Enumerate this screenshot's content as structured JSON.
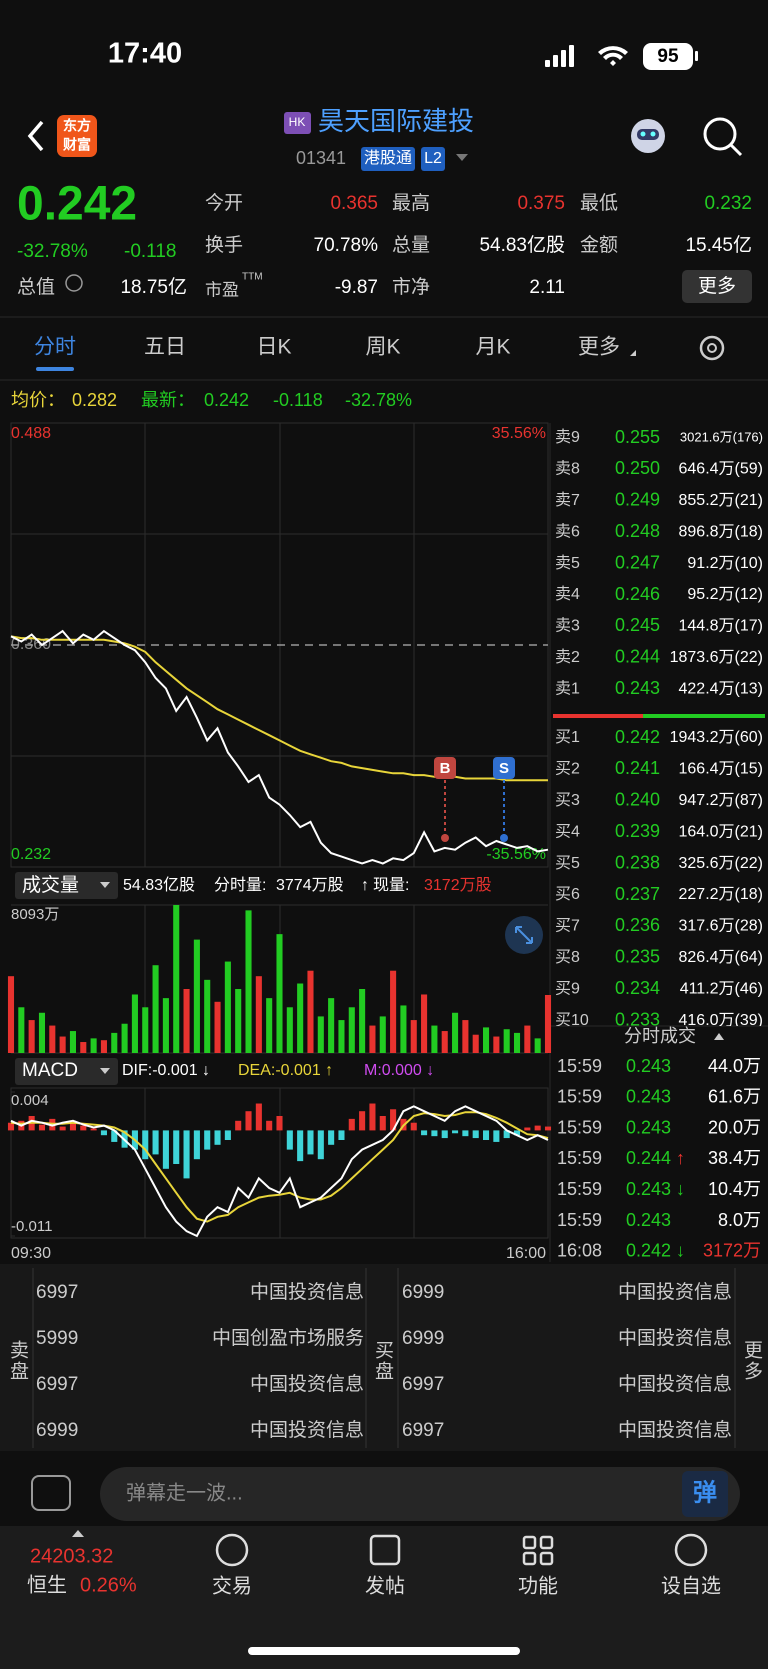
{
  "status_bar": {
    "time": "17:40",
    "battery": "95"
  },
  "header": {
    "logo": [
      "东方",
      "财富"
    ],
    "market_badge": "HK",
    "title": "昊天国际建投",
    "code": "01341",
    "badges": [
      "港股通",
      "L2"
    ]
  },
  "quote": {
    "price": "0.242",
    "change_pct": "-32.78%",
    "change": "-0.118",
    "market_cap_label": "总值",
    "market_cap": "18.75亿",
    "stats": [
      {
        "label": "今开",
        "value": "0.365",
        "color": "#e8332f"
      },
      {
        "label": "最高",
        "value": "0.375",
        "color": "#e8332f"
      },
      {
        "label": "最低",
        "value": "0.232",
        "color": "#22cc22"
      },
      {
        "label": "换手",
        "value": "70.78%",
        "color": "#ffffff"
      },
      {
        "label": "总量",
        "value": "54.83亿股",
        "color": "#ffffff"
      },
      {
        "label": "金额",
        "value": "15.45亿",
        "color": "#ffffff"
      },
      {
        "label": "市盈",
        "sup": "TTM",
        "value": "-9.87",
        "color": "#ffffff"
      },
      {
        "label": "市净",
        "value": "2.11",
        "color": "#ffffff"
      }
    ],
    "more_button": "更多"
  },
  "tabs": [
    "分时",
    "五日",
    "日K",
    "周K",
    "月K",
    "更多"
  ],
  "info_line": {
    "avg_label": "均价：",
    "avg": "0.282",
    "last_label": "最新：",
    "last": "0.242",
    "change": "-0.118",
    "change_pct": "-32.78%"
  },
  "price_chart": {
    "type": "line",
    "ylim": [
      0.232,
      0.488
    ],
    "yticks": [
      0.232,
      {
        "value": 0.36,
        "label": "0.360"
      },
      0.488
    ],
    "y2lim": [
      -35.56,
      35.56
    ],
    "y2ticks": [
      {
        "value": -35.56,
        "label": "-35.56%"
      },
      {
        "value": 35.56,
        "label": "35.56%"
      }
    ],
    "price": {
      "color": "#ffffff",
      "values": [
        0.365,
        0.362,
        0.366,
        0.36,
        0.364,
        0.368,
        0.361,
        0.366,
        0.363,
        0.368,
        0.364,
        0.36,
        0.357,
        0.35,
        0.341,
        0.335,
        0.322,
        0.33,
        0.318,
        0.305,
        0.312,
        0.298,
        0.29,
        0.281,
        0.285,
        0.272,
        0.268,
        0.262,
        0.255,
        0.258,
        0.246,
        0.24,
        0.238,
        0.236,
        0.234,
        0.236,
        0.234,
        0.237,
        0.236,
        0.24,
        0.252,
        0.241,
        0.243,
        0.242,
        0.246,
        0.249,
        0.244,
        0.247,
        0.245,
        0.243,
        0.244,
        0.241,
        0.242
      ]
    },
    "avg": {
      "color": "#e8d53a",
      "values": [
        0.365,
        0.364,
        0.364,
        0.363,
        0.363,
        0.363,
        0.363,
        0.363,
        0.363,
        0.363,
        0.362,
        0.361,
        0.359,
        0.356,
        0.35,
        0.345,
        0.34,
        0.335,
        0.331,
        0.327,
        0.323,
        0.32,
        0.317,
        0.314,
        0.311,
        0.308,
        0.305,
        0.302,
        0.299,
        0.297,
        0.295,
        0.293,
        0.292,
        0.29,
        0.289,
        0.288,
        0.287,
        0.286,
        0.286,
        0.285,
        0.285,
        0.284,
        0.284,
        0.284,
        0.283,
        0.283,
        0.283,
        0.283,
        0.282,
        0.282,
        0.282,
        0.282,
        0.282
      ]
    },
    "trade_markers": [
      "B",
      "S"
    ]
  },
  "volume_chart": {
    "type": "bar",
    "header": {
      "selector": "成交量",
      "total": "54.83亿股",
      "period_label": "分时量:",
      "period": "3774万股",
      "arrow": "↑",
      "current_label": "现量:",
      "current": "3172万股"
    },
    "ylim": [
      0,
      8093
    ],
    "yticks": [
      {
        "value": 8093,
        "label": "8093万"
      }
    ],
    "values": [
      4200,
      2500,
      1800,
      2200,
      1500,
      900,
      1200,
      600,
      800,
      700,
      1100,
      1600,
      3200,
      2500,
      4800,
      3000,
      8093,
      3500,
      6200,
      4000,
      2800,
      5000,
      3500,
      7800,
      4200,
      3000,
      6500,
      2500,
      3800,
      4500,
      2000,
      3000,
      1800,
      2500,
      3500,
      1500,
      2000,
      4500,
      2600,
      1800,
      3200,
      1500,
      1200,
      2200,
      1800,
      1000,
      1400,
      900,
      1300,
      1100,
      1500,
      800,
      3172
    ]
  },
  "macd_chart": {
    "type": "macd",
    "header": {
      "selector": "MACD",
      "dif": "DIF:-0.001 ↓",
      "dea": "DEA:-0.001 ↑",
      "m": "M:0.000 ↓"
    },
    "ylim": [
      -0.011,
      0.004
    ],
    "yticks": [
      -0.011,
      0.004
    ],
    "dif": {
      "color": "#ffffff",
      "values": [
        0.001,
        0.0005,
        0.001,
        0.0008,
        0.0005,
        0.0008,
        0.001,
        0.0006,
        0.0003,
        0.0005,
        0.0,
        -0.001,
        -0.002,
        -0.004,
        -0.006,
        -0.008,
        -0.0095,
        -0.0105,
        -0.011,
        -0.009,
        -0.008,
        -0.0085,
        -0.006,
        -0.007,
        -0.005,
        -0.006,
        -0.0065,
        -0.005,
        -0.008,
        -0.0075,
        -0.007,
        -0.006,
        -0.005,
        -0.003,
        -0.002,
        -0.0015,
        -0.001,
        0.0,
        0.002,
        0.0025,
        0.002,
        0.0015,
        0.001,
        0.002,
        0.0025,
        0.002,
        0.0015,
        0.001,
        0.0,
        -0.0005,
        -0.001,
        -0.0005,
        -0.001
      ]
    },
    "dea": {
      "color": "#e8d53a",
      "values": [
        0.0008,
        0.0007,
        0.0008,
        0.0008,
        0.0007,
        0.0007,
        0.0008,
        0.0007,
        0.0006,
        0.0005,
        0.0003,
        -0.0002,
        -0.001,
        -0.002,
        -0.0035,
        -0.005,
        -0.0065,
        -0.008,
        -0.0092,
        -0.0095,
        -0.009,
        -0.0088,
        -0.008,
        -0.0075,
        -0.007,
        -0.0068,
        -0.0067,
        -0.0065,
        -0.007,
        -0.0072,
        -0.0072,
        -0.0068,
        -0.006,
        -0.005,
        -0.004,
        -0.003,
        -0.002,
        -0.001,
        0.0005,
        0.0015,
        0.0018,
        0.0017,
        0.0015,
        0.0016,
        0.0019,
        0.0019,
        0.0017,
        0.0013,
        0.0008,
        0.0002,
        -0.0004,
        -0.0005,
        -0.0008
      ]
    },
    "hist": {
      "up_color": "#e8332f",
      "down_color": "#3fd4d8",
      "values": [
        0.0008,
        0.001,
        0.0015,
        0.0006,
        0.0012,
        0.0004,
        0.001,
        0.0005,
        0.0002,
        -0.0005,
        -0.0012,
        -0.0018,
        -0.002,
        -0.003,
        -0.0025,
        -0.004,
        -0.0035,
        -0.005,
        -0.003,
        -0.002,
        -0.0015,
        -0.001,
        0.001,
        0.002,
        0.0028,
        0.001,
        0.0015,
        -0.002,
        -0.0032,
        -0.0025,
        -0.003,
        -0.0015,
        -0.001,
        0.0012,
        0.002,
        0.0028,
        0.0015,
        0.0022,
        0.0012,
        0.0008,
        -0.0005,
        -0.0006,
        -0.0008,
        -0.0003,
        -0.0006,
        -0.0008,
        -0.001,
        -0.0012,
        -0.0008,
        -0.0005,
        0.0003,
        0.0005,
        0.0004
      ]
    },
    "xticks": [
      "09:30",
      "16:00"
    ]
  },
  "order_book": {
    "asks": [
      {
        "label": "卖9",
        "price": "0.255",
        "volume": "3021.6万(176)"
      },
      {
        "label": "卖8",
        "price": "0.250",
        "volume": "646.4万(59)"
      },
      {
        "label": "卖7",
        "price": "0.249",
        "volume": "855.2万(21)"
      },
      {
        "label": "卖6",
        "price": "0.248",
        "volume": "896.8万(18)"
      },
      {
        "label": "卖5",
        "price": "0.247",
        "volume": "91.2万(10)"
      },
      {
        "label": "卖4",
        "price": "0.246",
        "volume": "95.2万(12)"
      },
      {
        "label": "卖3",
        "price": "0.245",
        "volume": "144.8万(17)"
      },
      {
        "label": "卖2",
        "price": "0.244",
        "volume": "1873.6万(22)"
      },
      {
        "label": "卖1",
        "price": "0.243",
        "volume": "422.4万(13)"
      }
    ],
    "bids": [
      {
        "label": "买1",
        "price": "0.242",
        "volume": "1943.2万(60)"
      },
      {
        "label": "买2",
        "price": "0.241",
        "volume": "166.4万(15)"
      },
      {
        "label": "买3",
        "price": "0.240",
        "volume": "947.2万(87)"
      },
      {
        "label": "买4",
        "price": "0.239",
        "volume": "164.0万(21)"
      },
      {
        "label": "买5",
        "price": "0.238",
        "volume": "325.6万(22)"
      },
      {
        "label": "买6",
        "price": "0.237",
        "volume": "227.2万(18)"
      },
      {
        "label": "买7",
        "price": "0.236",
        "volume": "317.6万(28)"
      },
      {
        "label": "买8",
        "price": "0.235",
        "volume": "826.4万(64)"
      },
      {
        "label": "买9",
        "price": "0.234",
        "volume": "411.2万(46)"
      },
      {
        "label": "买10",
        "price": "0.233",
        "volume": "416.0万(39)"
      }
    ]
  },
  "trades": {
    "title": "分时成交",
    "rows": [
      {
        "time": "15:59",
        "price": "0.243",
        "volume": "44.0万"
      },
      {
        "time": "15:59",
        "price": "0.243",
        "volume": "61.6万"
      },
      {
        "time": "15:59",
        "price": "0.243",
        "volume": "20.0万"
      },
      {
        "time": "15:59",
        "price": "0.244",
        "arrow": "↑",
        "volume": "38.4万"
      },
      {
        "time": "15:59",
        "price": "0.243",
        "arrow": "↓",
        "volume": "10.4万"
      },
      {
        "time": "15:59",
        "price": "0.243",
        "volume": "8.0万"
      },
      {
        "time": "16:08",
        "price": "0.242",
        "arrow": "↓",
        "volume": "3172万",
        "volume_color": "#e8332f"
      }
    ]
  },
  "brokers": {
    "sell_label": "卖盘",
    "buy_label": "买盘",
    "more": "更多",
    "sell": [
      {
        "id": "6997",
        "name": "中国投资信息"
      },
      {
        "id": "5999",
        "name": "中国创盈市场服务"
      },
      {
        "id": "6997",
        "name": "中国投资信息"
      },
      {
        "id": "6999",
        "name": "中国投资信息"
      }
    ],
    "buy": [
      {
        "id": "6999",
        "name": "中国投资信息"
      },
      {
        "id": "6999",
        "name": "中国投资信息"
      },
      {
        "id": "6997",
        "name": "中国投资信息"
      },
      {
        "id": "6997",
        "name": "中国投资信息"
      }
    ]
  },
  "comment_bar": {
    "placeholder": "弹幕走一波...",
    "button": "弹"
  },
  "bottom_nav": {
    "index_value": "24203.32",
    "index_name": "恒生",
    "index_change": "0.26%",
    "items": [
      "交易",
      "发帖",
      "功能",
      "设自选"
    ]
  }
}
